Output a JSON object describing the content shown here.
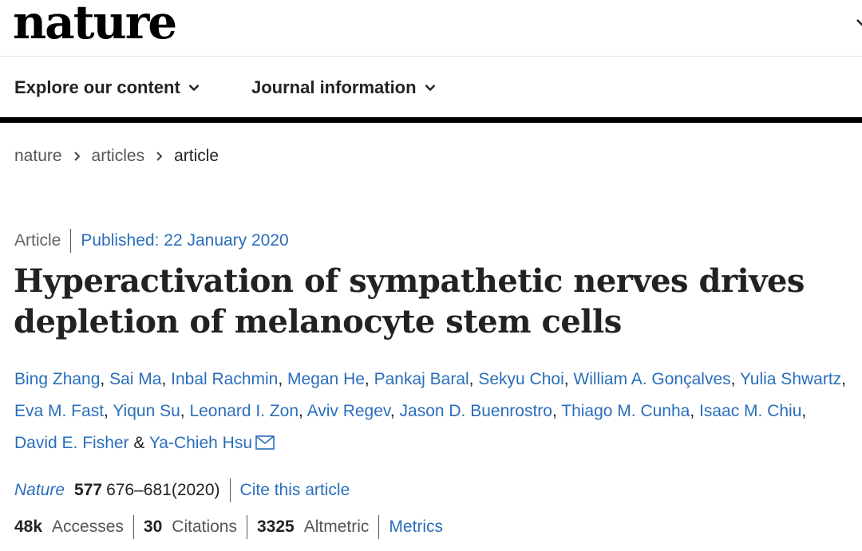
{
  "masthead": {
    "logo": "nature"
  },
  "nav": [
    {
      "label": "Explore our content"
    },
    {
      "label": "Journal information"
    }
  ],
  "breadcrumb": [
    "nature",
    "articles",
    "article"
  ],
  "article": {
    "type": "Article",
    "published": "Published: 22 January 2020",
    "title": "Hyperactivation of sympathetic nerves drives depletion of melanocyte stem cells",
    "authors": [
      "Bing Zhang",
      "Sai Ma",
      "Inbal Rachmin",
      "Megan He",
      "Pankaj Baral",
      "Sekyu Choi",
      "William A. Gonçalves",
      "Yulia Shwartz",
      "Eva M. Fast",
      "Yiqun Su",
      "Leonard I. Zon",
      "Aviv Regev",
      "Jason D. Buenrostro",
      "Thiago M. Cunha",
      "Isaac M. Chiu",
      "David E. Fisher",
      "Ya-Chieh Hsu"
    ],
    "author_separator": ", ",
    "author_final_joiner": " & ",
    "citation": {
      "journal": "Nature",
      "volume": "577",
      "pages": "676–681(2020)",
      "cite_label": "Cite this article"
    },
    "metrics": [
      {
        "value": "48k",
        "label": "Accesses"
      },
      {
        "value": "30",
        "label": "Citations"
      },
      {
        "value": "3325",
        "label": "Altmetric"
      }
    ],
    "metrics_link": "Metrics"
  },
  "colors": {
    "link": "#2a6ebb",
    "text": "#222222",
    "rule": "#000000"
  }
}
